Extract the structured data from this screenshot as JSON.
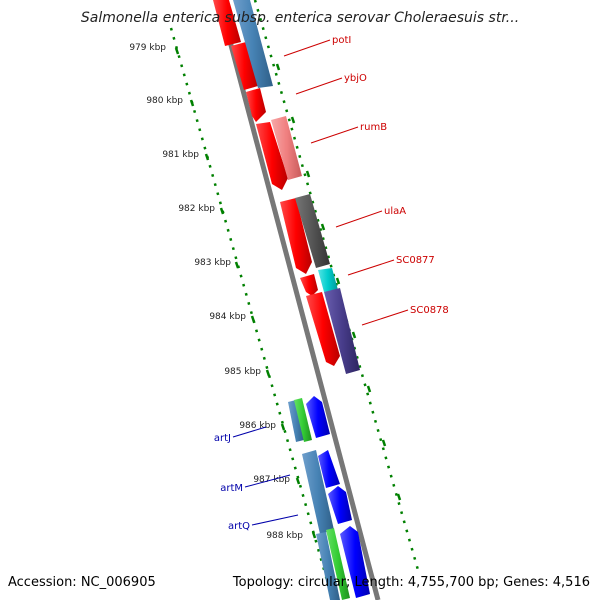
{
  "title": "Salmonella enterica subsp. enterica serovar Choleraesuis str...",
  "footer": {
    "accession": "Accession: NC_006905",
    "summary": "Topology: circular; Length: 4,755,700 bp; Genes: 4,516"
  },
  "kbp_labels": [
    "979 kbp",
    "980 kbp",
    "981 kbp",
    "982 kbp",
    "983 kbp",
    "984 kbp",
    "985 kbp",
    "986 kbp",
    "987 kbp",
    "988 kbp"
  ],
  "genes_right": [
    {
      "name": "potI",
      "color": "#cc0000"
    },
    {
      "name": "ybjO",
      "color": "#cc0000"
    },
    {
      "name": "rumB",
      "color": "#cc0000"
    },
    {
      "name": "ulaA",
      "color": "#cc0000"
    },
    {
      "name": "SC0877",
      "color": "#cc0000"
    },
    {
      "name": "SC0878",
      "color": "#cc0000"
    }
  ],
  "genes_left": [
    {
      "name": "artJ",
      "color": "#0000aa"
    },
    {
      "name": "artM",
      "color": "#0000aa"
    },
    {
      "name": "artQ",
      "color": "#0000aa"
    }
  ],
  "colors": {
    "forward_cds": "#0000ff",
    "reverse_cds": "#ff0000",
    "steel_blue": "#4682b4",
    "light_red": "#f08080",
    "dark_gray": "#555555",
    "cyan": "#00cccc",
    "dark_slate": "#483d8b",
    "green": "#33cc33",
    "backbone": "#777777",
    "tick_green": "#008000"
  }
}
